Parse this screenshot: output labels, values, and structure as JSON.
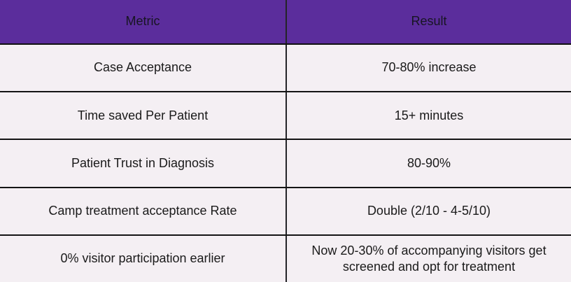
{
  "chart_data": {
    "type": "table",
    "title": "",
    "columns": [
      "Metric",
      "Result"
    ],
    "rows": [
      [
        "Case Acceptance",
        "70-80% increase"
      ],
      [
        "Time saved Per Patient",
        "15+ minutes"
      ],
      [
        "Patient Trust in Diagnosis",
        "80-90%"
      ],
      [
        "Camp treatment acceptance Rate",
        "Double (2/10 - 4-5/10)"
      ],
      [
        "0% visitor participation earlier",
        "Now 20-30% of accompanying visitors get screened and opt for treatment"
      ]
    ]
  },
  "colors": {
    "header_bg": "#5B2D9C",
    "row_bg": "#F4EFF3",
    "rule": "#141414",
    "divider": "#242428",
    "text": "#1A1A1A"
  }
}
